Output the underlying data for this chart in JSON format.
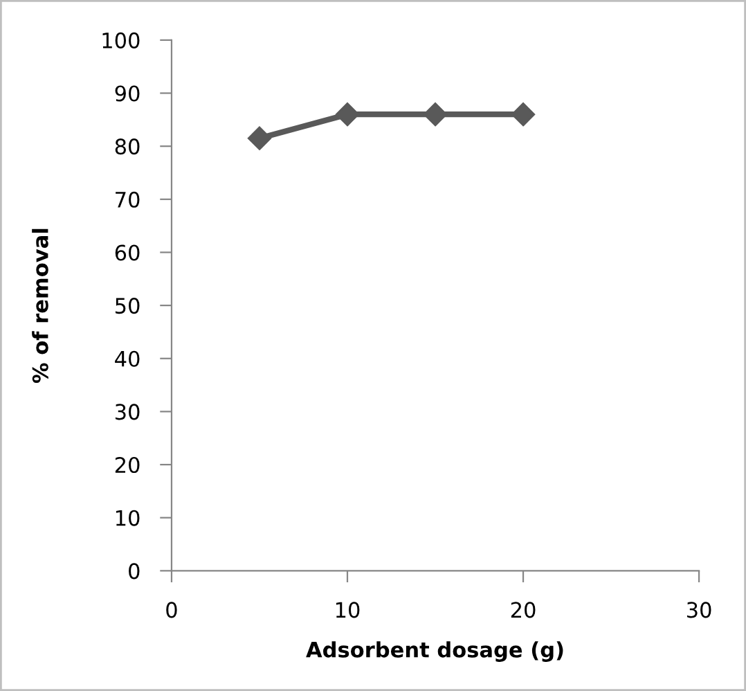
{
  "chart_data": {
    "type": "line",
    "xlabel": "Adsorbent dosage (g)",
    "ylabel": "% of removal",
    "x": [
      5,
      10,
      15,
      20
    ],
    "series": [
      {
        "color": "#595959",
        "values": [
          81.5,
          86,
          86,
          86
        ]
      }
    ],
    "xlim": [
      0,
      30
    ],
    "xticks": [
      0,
      10,
      20,
      30
    ],
    "ylim": [
      0,
      100
    ],
    "yticks": [
      0,
      10,
      20,
      30,
      40,
      50,
      60,
      70,
      80,
      90,
      100
    ],
    "grid": false,
    "legend": false,
    "marker": "diamond",
    "line_style": "solid"
  }
}
